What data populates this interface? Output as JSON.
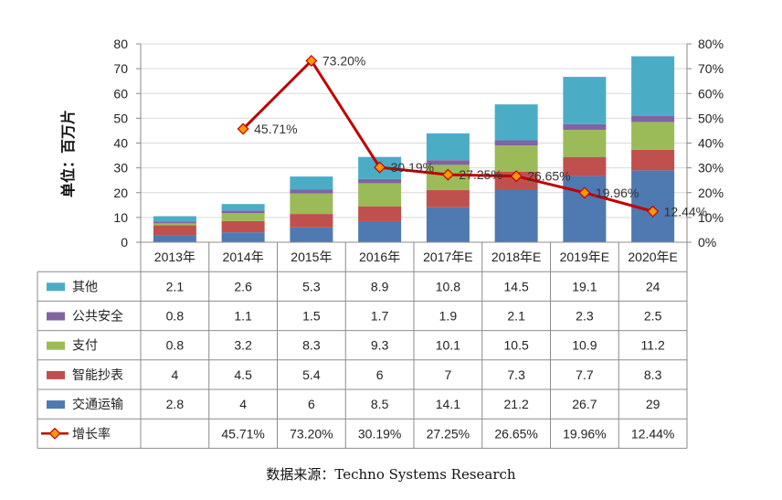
{
  "chart_data": {
    "type": "bar",
    "stacked": true,
    "categories": [
      "2013年",
      "2014年",
      "2015年",
      "2016年",
      "2017年E",
      "2018年E",
      "2019年E",
      "2020年E"
    ],
    "ylabel": "单位：百万片",
    "ylim": [
      0,
      80
    ],
    "yticks": [
      "0",
      "10",
      "20",
      "30",
      "40",
      "50",
      "60",
      "70",
      "80"
    ],
    "y2lim": [
      0,
      80
    ],
    "y2ticks": [
      "0%",
      "10%",
      "20%",
      "30%",
      "40%",
      "50%",
      "60%",
      "70%",
      "80%"
    ],
    "series": [
      {
        "name": "交通运输",
        "color": "#4f79b1",
        "values": [
          2.8,
          4,
          6,
          8.5,
          14.1,
          21.2,
          26.7,
          29
        ],
        "labels": [
          "2.8",
          "4",
          "6",
          "8.5",
          "14.1",
          "21.2",
          "26.7",
          "29"
        ]
      },
      {
        "name": "智能抄表",
        "color": "#c0504d",
        "values": [
          4,
          4.5,
          5.4,
          6,
          7,
          7.3,
          7.7,
          8.3
        ],
        "labels": [
          "4",
          "4.5",
          "5.4",
          "6",
          "7",
          "7.3",
          "7.7",
          "8.3"
        ]
      },
      {
        "name": "支付",
        "color": "#9bbb59",
        "values": [
          0.8,
          3.2,
          8.3,
          9.3,
          10.1,
          10.5,
          10.9,
          11.2
        ],
        "labels": [
          "0.8",
          "3.2",
          "8.3",
          "9.3",
          "10.1",
          "10.5",
          "10.9",
          "11.2"
        ]
      },
      {
        "name": "公共安全",
        "color": "#8064a2",
        "values": [
          0.8,
          1.1,
          1.5,
          1.7,
          1.9,
          2.1,
          2.3,
          2.5
        ],
        "labels": [
          "0.8",
          "1.1",
          "1.5",
          "1.7",
          "1.9",
          "2.1",
          "2.3",
          "2.5"
        ]
      },
      {
        "name": "其他",
        "color": "#4bacc6",
        "values": [
          2.1,
          2.6,
          5.3,
          8.9,
          10.8,
          14.5,
          19.1,
          24
        ],
        "labels": [
          "2.1",
          "2.6",
          "5.3",
          "8.9",
          "10.8",
          "14.5",
          "19.1",
          "24"
        ]
      }
    ],
    "line": {
      "name": "增长率",
      "color": "#c00000",
      "marker_color": "#ff9900",
      "values": [
        null,
        45.71,
        73.2,
        30.19,
        27.25,
        26.65,
        19.96,
        12.44
      ],
      "labels": [
        "",
        "45.71%",
        "73.20%",
        "30.19%",
        "27.25%",
        "26.65%",
        "19.96%",
        "12.44%"
      ]
    },
    "table_rows": [
      "其他",
      "公共安全",
      "支付",
      "智能抄表",
      "交通运输",
      "增长率"
    ],
    "source": "数据来源：Techno Systems Research"
  }
}
